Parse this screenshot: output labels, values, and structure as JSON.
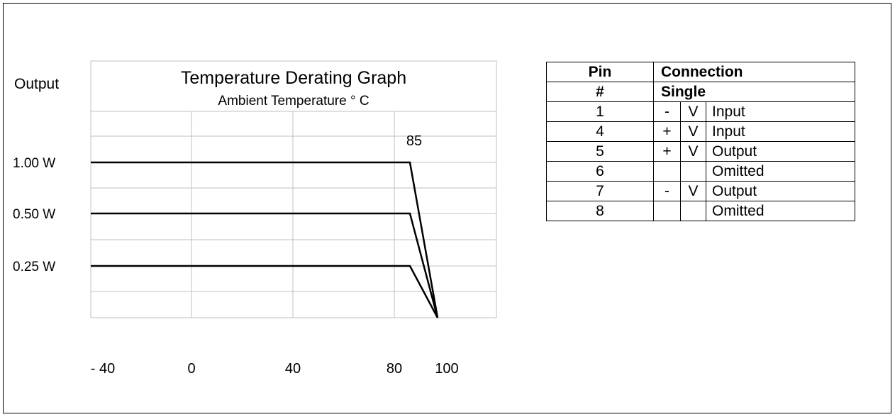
{
  "chart_data": {
    "type": "line",
    "title": "Temperature Derating Graph",
    "subtitle": "Ambient Temperature ° C",
    "ylabel": "Output",
    "x_ticks": [
      "- 40",
      "0",
      "40",
      "80",
      "100"
    ],
    "x_tick_values": [
      -40,
      0,
      40,
      80,
      100
    ],
    "y_ticks": [
      "1.00 W",
      "0.50 W",
      "0.25 W"
    ],
    "y_tick_values": [
      1.0,
      0.5,
      0.25
    ],
    "xlim": [
      -40,
      120
    ],
    "annotation": "85",
    "annotation_x": 85,
    "series": [
      {
        "x": [
          -40,
          85,
          95
        ],
        "y": [
          1.0,
          1.0,
          0
        ]
      },
      {
        "x": [
          -40,
          85,
          95
        ],
        "y": [
          0.5,
          0.5,
          0
        ]
      },
      {
        "x": [
          -40,
          85,
          95
        ],
        "y": [
          0.25,
          0.25,
          0
        ]
      }
    ]
  },
  "pin_table": {
    "header_pin": "Pin",
    "header_connection": "Connection",
    "subheader_pin": "#",
    "subheader_connection": "Single",
    "rows": [
      {
        "pin": "1",
        "sign": "-",
        "v": "V",
        "desc": "Input"
      },
      {
        "pin": "4",
        "sign": "+",
        "v": "V",
        "desc": "Input"
      },
      {
        "pin": "5",
        "sign": "+",
        "v": "V",
        "desc": "Output"
      },
      {
        "pin": "6",
        "sign": "",
        "v": "",
        "desc": "Omitted"
      },
      {
        "pin": "7",
        "sign": "-",
        "v": "V",
        "desc": "Output"
      },
      {
        "pin": "8",
        "sign": "",
        "v": "",
        "desc": "Omitted"
      }
    ]
  }
}
